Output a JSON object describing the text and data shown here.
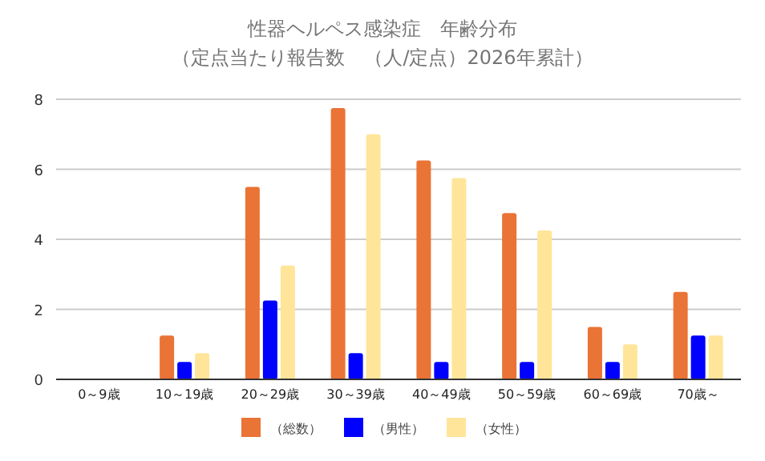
{
  "chart_data": {
    "type": "bar",
    "title": "性器ヘルペス感染症　年齢分布",
    "subtitle": "（定点当たり報告数　（人/定点）2026年累計）",
    "categories": [
      "0～9歳",
      "10～19歳",
      "20～29歳",
      "30～39歳",
      "40～49歳",
      "50～59歳",
      "60～69歳",
      "70歳～"
    ],
    "series": [
      {
        "name": "（総数）",
        "color": "#ea7336",
        "values": [
          0,
          1.25,
          5.5,
          7.75,
          6.25,
          4.75,
          1.5,
          2.5
        ]
      },
      {
        "name": "（男性）",
        "color": "#0000ff",
        "values": [
          0,
          0.5,
          2.25,
          0.75,
          0.5,
          0.5,
          0.5,
          1.25
        ]
      },
      {
        "name": "（女性）",
        "color": "#ffe599",
        "values": [
          0,
          0.75,
          3.25,
          7.0,
          5.75,
          4.25,
          1.0,
          1.25
        ]
      }
    ],
    "ylim": [
      0,
      8
    ],
    "yticks": [
      0,
      2,
      4,
      6,
      8
    ],
    "grid": "y",
    "legend": "bottom"
  }
}
